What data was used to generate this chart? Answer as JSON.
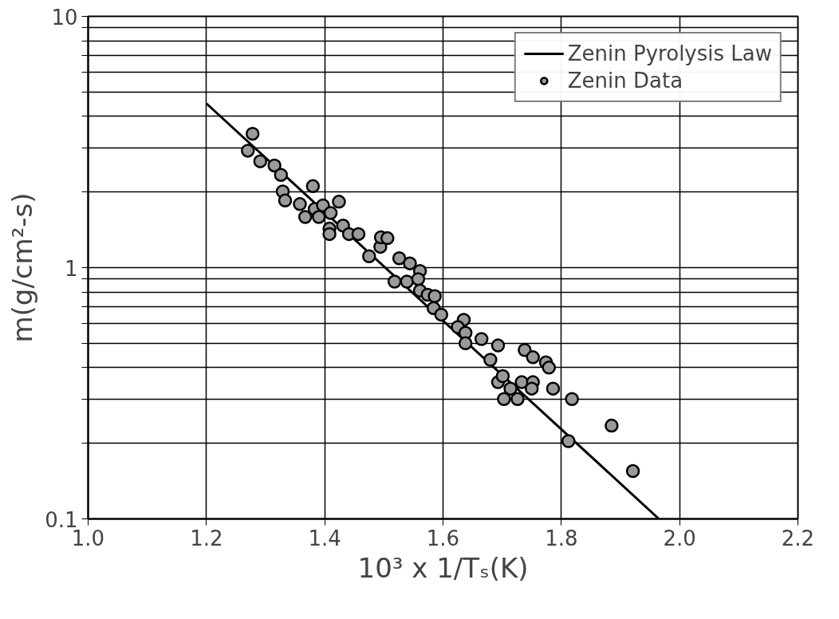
{
  "chart_data": {
    "type": "scatter",
    "xlabel": "10³ x 1/Tₛ(K)",
    "ylabel": "m(g/cm²-s)",
    "log": "y",
    "grid": true,
    "legend": "top right",
    "xlim": [
      1.0,
      2.2
    ],
    "ylim": [
      0.1,
      10
    ],
    "xticks": [
      {
        "value": 1.0,
        "label": "1.0"
      },
      {
        "value": 1.2,
        "label": "1.2"
      },
      {
        "value": 1.4,
        "label": "1.4"
      },
      {
        "value": 1.6,
        "label": "1.6"
      },
      {
        "value": 1.8,
        "label": "1.8"
      },
      {
        "value": 2.0,
        "label": "2.0"
      },
      {
        "value": 2.2,
        "label": "2.2"
      }
    ],
    "yticks": [
      0.1,
      {
        "value": 0.2,
        "label": null
      },
      {
        "value": 0.3,
        "label": null
      },
      {
        "value": 0.4,
        "label": null
      },
      {
        "value": 0.5,
        "label": null
      },
      {
        "value": 0.6,
        "label": null
      },
      {
        "value": 0.7,
        "label": null
      },
      {
        "value": 0.8,
        "label": null
      },
      {
        "value": 0.9,
        "label": null
      },
      1,
      {
        "value": 2,
        "label": null
      },
      {
        "value": 3,
        "label": null
      },
      {
        "value": 4,
        "label": null
      },
      {
        "value": 5,
        "label": null
      },
      {
        "value": 6,
        "label": null
      },
      {
        "value": 7,
        "label": null
      },
      {
        "value": 8,
        "label": null
      },
      {
        "value": 9,
        "label": null
      },
      10
    ],
    "series": [
      {
        "name": "Zenin Pyrolysis Law",
        "type": "line",
        "color": "#000000",
        "marker": "none",
        "line_style": "solid",
        "x": [
          1.2,
          1.965
        ],
        "values": [
          4.5,
          0.1
        ]
      },
      {
        "name": "Zenin Data",
        "color": "#9a9a9a",
        "marker": "circle",
        "x": [
          1.278,
          1.27,
          1.291,
          1.315,
          1.326,
          1.329,
          1.333,
          1.358,
          1.367,
          1.383,
          1.39,
          1.38,
          1.397,
          1.41,
          1.408,
          1.408,
          1.424,
          1.431,
          1.441,
          1.457,
          1.475,
          1.494,
          1.495,
          1.506,
          1.518,
          1.526,
          1.539,
          1.544,
          1.561,
          1.558,
          1.561,
          1.574,
          1.586,
          1.584,
          1.597,
          1.635,
          1.625,
          1.638,
          1.638,
          1.665,
          1.693,
          1.68,
          1.738,
          1.752,
          1.774,
          1.779,
          1.693,
          1.701,
          1.714,
          1.733,
          1.752,
          1.75,
          1.786,
          1.703,
          1.726,
          1.818,
          1.885,
          1.812,
          1.921
        ],
        "values": [
          3.41,
          2.92,
          2.65,
          2.55,
          2.34,
          2.01,
          1.85,
          1.79,
          1.59,
          1.71,
          1.59,
          2.11,
          1.77,
          1.65,
          1.43,
          1.36,
          1.83,
          1.47,
          1.36,
          1.36,
          1.11,
          1.21,
          1.32,
          1.31,
          0.88,
          1.09,
          0.88,
          1.04,
          0.97,
          0.9,
          0.81,
          0.78,
          0.77,
          0.69,
          0.65,
          0.62,
          0.58,
          0.55,
          0.5,
          0.52,
          0.49,
          0.43,
          0.47,
          0.44,
          0.42,
          0.4,
          0.35,
          0.37,
          0.33,
          0.35,
          0.35,
          0.33,
          0.33,
          0.3,
          0.3,
          0.3,
          0.235,
          0.204,
          0.155
        ]
      }
    ]
  }
}
